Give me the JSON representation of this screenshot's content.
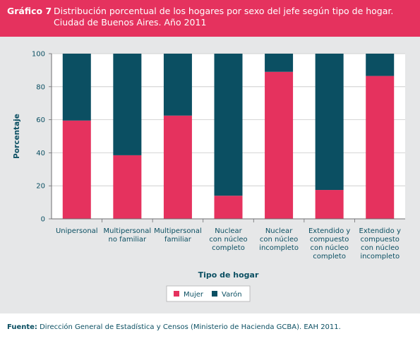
{
  "header": {
    "label": "Gráfico 7",
    "title_line1": "Distribución porcentual de los hogares por sexo del jefe según tipo de hogar.",
    "title_line2": "Ciudad de Buenos Aires. Año 2011"
  },
  "footer": {
    "source_label": "Fuente:",
    "source_text": " Dirección General de Estadística y Censos (Ministerio de Hacienda GCBA). EAH 2011."
  },
  "colors": {
    "mujer": "#e5325e",
    "varon": "#0b4f62",
    "header_bg": "#e5325e",
    "panel_bg": "#e6e7e8"
  },
  "chart_data": {
    "type": "bar",
    "stacked": true,
    "xlabel": "Tipo de hogar",
    "ylabel": "Porcentaje",
    "ylim": [
      0,
      100
    ],
    "yticks": [
      "0",
      "20",
      "40",
      "60",
      "80",
      "100"
    ],
    "grid": true,
    "legend_position": "bottom",
    "categories": [
      [
        "Unipersonal"
      ],
      [
        "Multipersonal",
        "no familiar"
      ],
      [
        "Multipersonal",
        "familiar"
      ],
      [
        "Nuclear",
        "con núcleo",
        "completo"
      ],
      [
        "Nuclear",
        "con núcleo",
        "incompleto"
      ],
      [
        "Extendido y",
        "compuesto",
        "con núcleo",
        "completo"
      ],
      [
        "Extendido y",
        "compuesto",
        "con núcleo",
        "incompleto"
      ]
    ],
    "series": [
      {
        "name": "Mujer",
        "color": "#e5325e",
        "values": [
          59.5,
          38.5,
          62.5,
          14,
          89,
          17.5,
          86.5
        ]
      },
      {
        "name": "Varón",
        "color": "#0b4f62",
        "values": [
          40.5,
          61.5,
          37.5,
          86,
          11,
          82.5,
          13.5
        ]
      }
    ]
  }
}
